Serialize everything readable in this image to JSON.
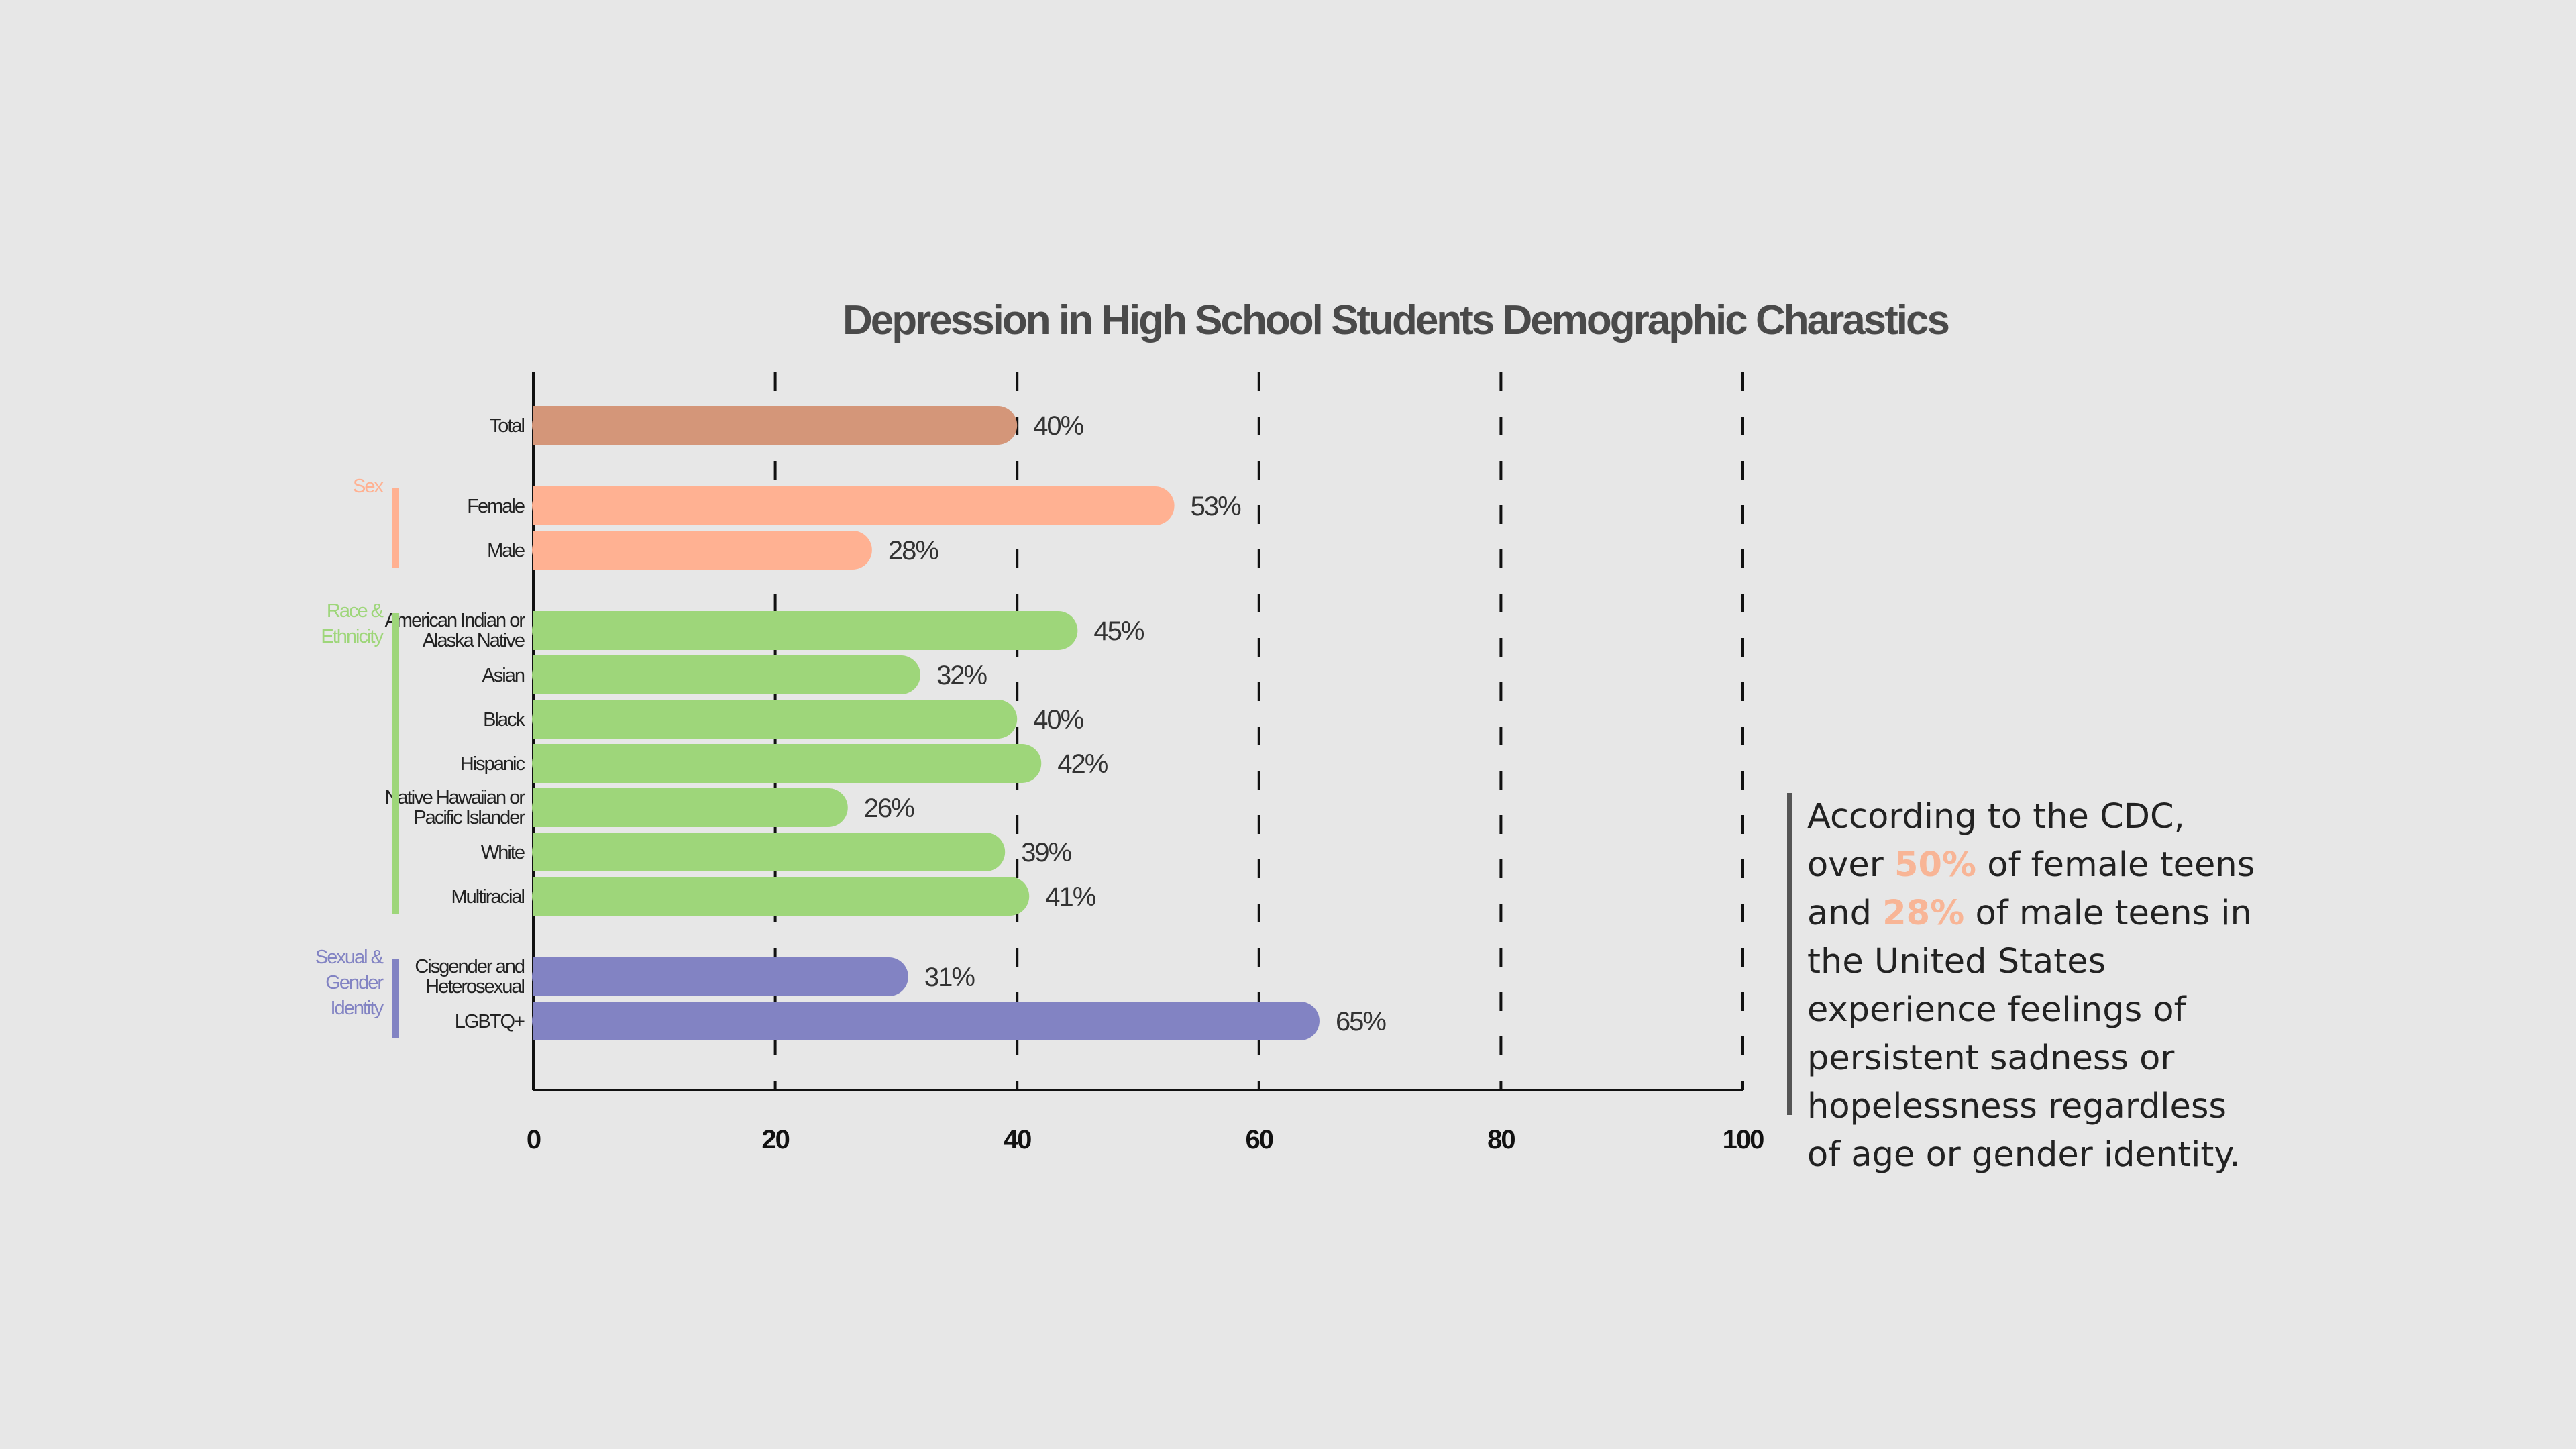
{
  "chart_data": {
    "type": "bar",
    "orientation": "horizontal",
    "title": "Depression in High School Students Demographic Charastics",
    "xlim": [
      0,
      100
    ],
    "x_ticks": [
      "0",
      "20",
      "40",
      "60",
      "80",
      "100"
    ],
    "x_tick_values": [
      0,
      20,
      40,
      60,
      80,
      100
    ],
    "grid": "vertical dashed",
    "groups": [
      {
        "name": "",
        "color": "#d49679",
        "show_bracket": false,
        "items": [
          {
            "label": [
              "Total"
            ],
            "value": 40,
            "value_label": "40%"
          }
        ]
      },
      {
        "name": "Sex",
        "name_lines": [
          "Sex"
        ],
        "color": "#ffb192",
        "show_bracket": true,
        "items": [
          {
            "label": [
              "Female"
            ],
            "value": 53,
            "value_label": "53%"
          },
          {
            "label": [
              "Male"
            ],
            "value": 28,
            "value_label": "28%"
          }
        ]
      },
      {
        "name": "Race & Ethnicity",
        "name_lines": [
          "Race &",
          "Ethnicity"
        ],
        "color": "#9ed67a",
        "show_bracket": true,
        "items": [
          {
            "label": [
              "American Indian or",
              "Alaska Native"
            ],
            "value": 45,
            "value_label": "45%"
          },
          {
            "label": [
              "Asian"
            ],
            "value": 32,
            "value_label": "32%"
          },
          {
            "label": [
              "Black"
            ],
            "value": 40,
            "value_label": "40%"
          },
          {
            "label": [
              "Hispanic"
            ],
            "value": 42,
            "value_label": "42%"
          },
          {
            "label": [
              "Native Hawaiian or",
              "Pacific Islander"
            ],
            "value": 26,
            "value_label": "26%"
          },
          {
            "label": [
              "White"
            ],
            "value": 39,
            "value_label": "39%"
          },
          {
            "label": [
              "Multiracial"
            ],
            "value": 41,
            "value_label": "41%"
          }
        ]
      },
      {
        "name": "Sexual & Gender Identity",
        "name_lines": [
          "Sexual &",
          "Gender",
          "Identity"
        ],
        "color": "#8283c3",
        "show_bracket": true,
        "items": [
          {
            "label": [
              "Cisgender and",
              "Heterosexual"
            ],
            "value": 31,
            "value_label": "31%"
          },
          {
            "label": [
              "LGBTQ+"
            ],
            "value": 65,
            "value_label": "65%"
          }
        ]
      }
    ]
  },
  "annotation": {
    "part1": "According to the CDC, over ",
    "highlight1": "50%",
    "part2": " of female teens and ",
    "highlight2": "28%",
    "part3": " of male teens in the United States experience feelings of persistent sadness or hopelessness regardless of age or gender identity.",
    "highlight_color": "#f8b596"
  }
}
